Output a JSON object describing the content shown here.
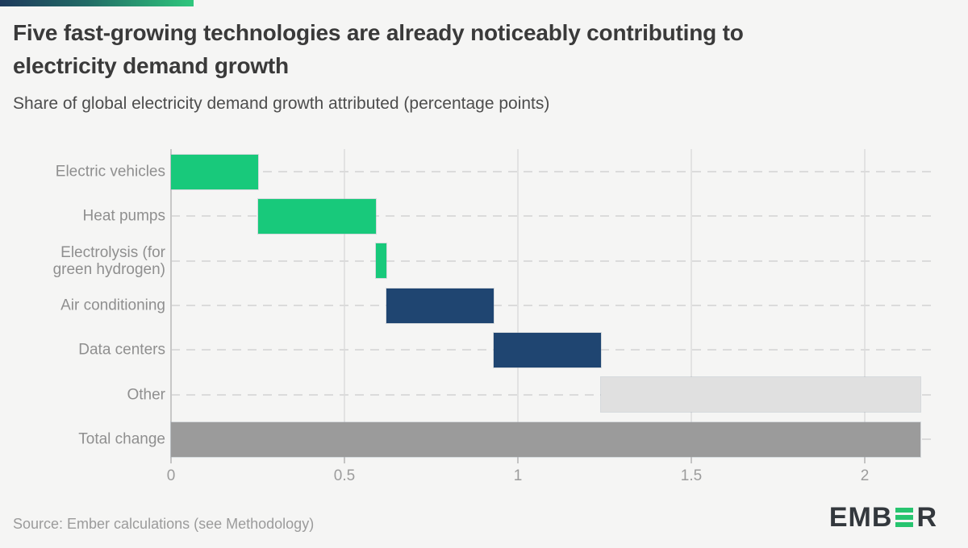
{
  "theme": {
    "background": "#f5f5f4",
    "accent_gradient": [
      "#1e3a5c",
      "#2fc77d"
    ],
    "title_color": "#3a3a3a",
    "text_gray": "#8f8f8f"
  },
  "header": {
    "title_lines": [
      "Five fast-growing technologies are already noticeably contributing to",
      "electricity demand growth"
    ],
    "subtitle": "Share of global electricity demand growth attributed (percentage points)"
  },
  "chart_data": {
    "type": "bar",
    "subtype": "horizontal-waterfall",
    "title": "Five fast-growing technologies are already noticeably contributing to electricity demand growth",
    "xlabel": "Share of global electricity demand growth attributed (percentage points)",
    "categories": [
      "Electric vehicles",
      "Heat pumps",
      "Electrolysis (for green hydrogen)",
      "Air conditioning",
      "Data centers",
      "Other",
      "Total change"
    ],
    "bars": [
      {
        "category": "Electric vehicles",
        "start": 0,
        "end": 0.25,
        "value": 0.25,
        "color_key": "green"
      },
      {
        "category": "Heat pumps",
        "start": 0.25,
        "end": 0.59,
        "value": 0.34,
        "color_key": "green"
      },
      {
        "category": "Electrolysis (for green hydrogen)",
        "start": 0.59,
        "end": 0.62,
        "value": 0.03,
        "color_key": "green"
      },
      {
        "category": "Air conditioning",
        "start": 0.62,
        "end": 0.93,
        "value": 0.31,
        "color_key": "navy"
      },
      {
        "category": "Data centers",
        "start": 0.93,
        "end": 1.24,
        "value": 0.31,
        "color_key": "navy"
      },
      {
        "category": "Other",
        "start": 1.24,
        "end": 2.16,
        "value": 0.92,
        "color_key": "light_gray"
      },
      {
        "category": "Total change",
        "start": 0,
        "end": 2.16,
        "value": 2.16,
        "color_key": "gray"
      }
    ],
    "colors": {
      "green": "#18c97b",
      "navy": "#1f4571",
      "light_gray": "#e0e0e0",
      "gray": "#9b9b9b"
    },
    "x_axis": {
      "ticks": [
        0,
        0.5,
        1,
        1.5,
        2
      ],
      "labels": [
        "0",
        "0.5",
        "1",
        "1.5",
        "2"
      ],
      "range": [
        0,
        2.2
      ]
    },
    "grid": {
      "vertical": "solid",
      "horizontal": "dashed"
    },
    "legend_position": "none"
  },
  "footer": {
    "source": "Source: Ember calculations (see Methodology)",
    "logo_prefix": "EMB",
    "logo_suffix": "R",
    "logo_alt": "EMBER"
  }
}
